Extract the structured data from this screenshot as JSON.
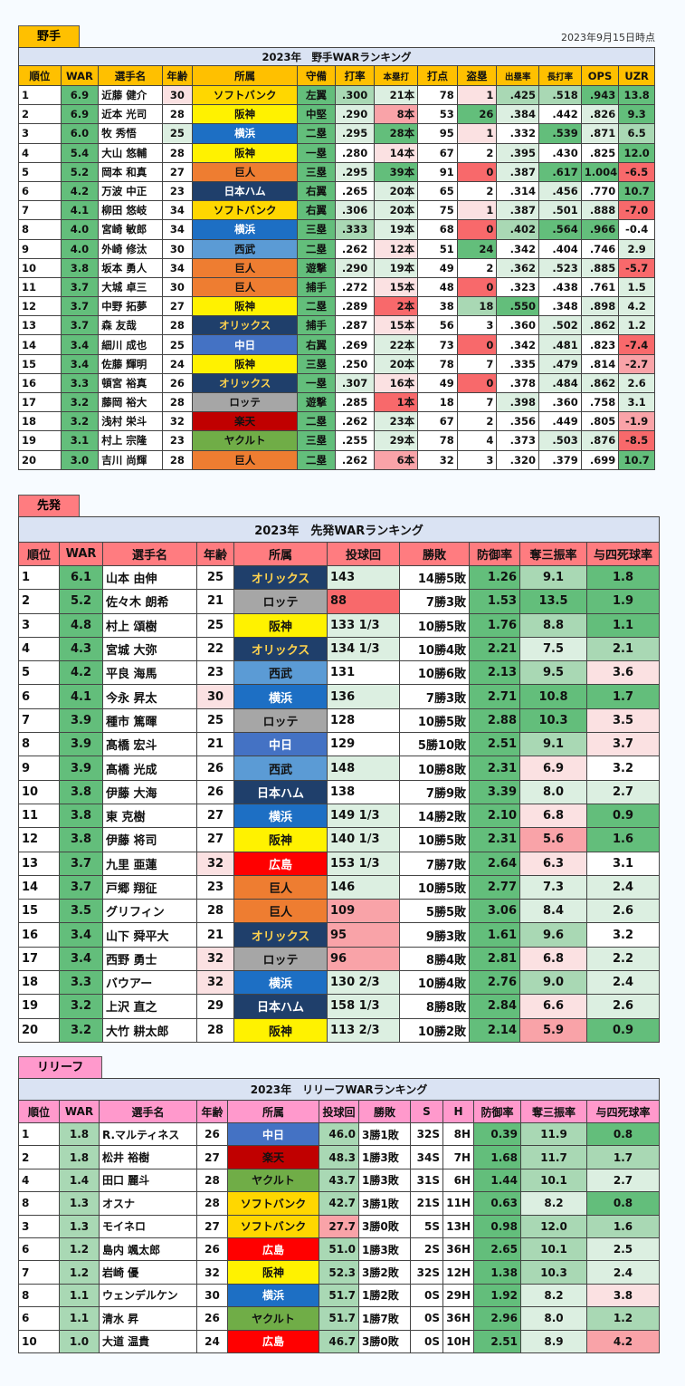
{
  "date": "2023年9月15日時点",
  "fielders": {
    "tab": "野手",
    "title": "2023年　野手WARランキング",
    "headers": [
      "順位",
      "WAR",
      "選手名",
      "年齢",
      "所属",
      "守備",
      "打率",
      "本塁打",
      "打点",
      "盗塁",
      "出塁率",
      "長打率",
      "OPS",
      "UZR"
    ],
    "rows": [
      [
        "1",
        "6.9",
        "近藤 健介",
        "30",
        "ソフトバンク",
        "左翼",
        ".300",
        "21本",
        "78",
        "1",
        ".425",
        ".518",
        ".943",
        "13.8"
      ],
      [
        "2",
        "6.9",
        "近本 光司",
        "28",
        "阪神",
        "中堅",
        ".290",
        "8本",
        "53",
        "26",
        ".384",
        ".442",
        ".826",
        "9.3"
      ],
      [
        "3",
        "6.0",
        "牧 秀悟",
        "25",
        "横浜",
        "二塁",
        ".295",
        "28本",
        "95",
        "1",
        ".332",
        ".539",
        ".871",
        "6.5"
      ],
      [
        "4",
        "5.4",
        "大山 悠輔",
        "28",
        "阪神",
        "一塁",
        ".280",
        "14本",
        "67",
        "2",
        ".395",
        ".430",
        ".825",
        "12.0"
      ],
      [
        "5",
        "5.2",
        "岡本 和真",
        "27",
        "巨人",
        "三塁",
        ".295",
        "39本",
        "91",
        "0",
        ".387",
        ".617",
        "1.004",
        "-6.5"
      ],
      [
        "6",
        "4.2",
        "万波 中正",
        "23",
        "日本ハム",
        "右翼",
        ".265",
        "20本",
        "65",
        "2",
        ".314",
        ".456",
        ".770",
        "10.7"
      ],
      [
        "7",
        "4.1",
        "柳田 悠岐",
        "34",
        "ソフトバンク",
        "右翼",
        ".306",
        "20本",
        "75",
        "1",
        ".387",
        ".501",
        ".888",
        "-7.0"
      ],
      [
        "8",
        "4.0",
        "宮崎 敏郎",
        "34",
        "横浜",
        "三塁",
        ".333",
        "19本",
        "68",
        "0",
        ".402",
        ".564",
        ".966",
        "-0.4"
      ],
      [
        "9",
        "4.0",
        "外崎 修汰",
        "30",
        "西武",
        "二塁",
        ".262",
        "12本",
        "51",
        "24",
        ".342",
        ".404",
        ".746",
        "2.9"
      ],
      [
        "10",
        "3.8",
        "坂本 勇人",
        "34",
        "巨人",
        "遊撃",
        ".290",
        "19本",
        "49",
        "2",
        ".362",
        ".523",
        ".885",
        "-5.7"
      ],
      [
        "11",
        "3.7",
        "大城 卓三",
        "30",
        "巨人",
        "捕手",
        ".272",
        "15本",
        "48",
        "0",
        ".323",
        ".438",
        ".761",
        "1.5"
      ],
      [
        "12",
        "3.7",
        "中野 拓夢",
        "27",
        "阪神",
        "二塁",
        ".289",
        "2本",
        "38",
        "18",
        ".550",
        ".348",
        ".898",
        "4.2"
      ],
      [
        "13",
        "3.7",
        "森 友哉",
        "28",
        "オリックス",
        "捕手",
        ".287",
        "15本",
        "56",
        "3",
        ".360",
        ".502",
        ".862",
        "1.2"
      ],
      [
        "14",
        "3.4",
        "細川 成也",
        "25",
        "中日",
        "右翼",
        ".269",
        "22本",
        "73",
        "0",
        ".342",
        ".481",
        ".823",
        "-7.4"
      ],
      [
        "15",
        "3.4",
        "佐藤 輝明",
        "24",
        "阪神",
        "三塁",
        ".250",
        "20本",
        "78",
        "7",
        ".335",
        ".479",
        ".814",
        "-2.7"
      ],
      [
        "16",
        "3.3",
        "頓宮 裕真",
        "26",
        "オリックス",
        "一塁",
        ".307",
        "16本",
        "49",
        "0",
        ".378",
        ".484",
        ".862",
        "2.6"
      ],
      [
        "17",
        "3.2",
        "藤岡 裕大",
        "28",
        "ロッテ",
        "遊撃",
        ".285",
        "1本",
        "18",
        "7",
        ".398",
        ".360",
        ".758",
        "3.1"
      ],
      [
        "18",
        "3.2",
        "浅村 栄斗",
        "32",
        "楽天",
        "二塁",
        ".262",
        "23本",
        "67",
        "2",
        ".356",
        ".449",
        ".805",
        "-1.9"
      ],
      [
        "19",
        "3.1",
        "村上 宗隆",
        "23",
        "ヤクルト",
        "三塁",
        ".255",
        "29本",
        "78",
        "4",
        ".373",
        ".503",
        ".876",
        "-8.5"
      ],
      [
        "20",
        "3.0",
        "吉川 尚輝",
        "28",
        "巨人",
        "二塁",
        ".262",
        "6本",
        "32",
        "3",
        ".320",
        ".379",
        ".699",
        "10.7"
      ]
    ],
    "shade": [
      [
        "",
        "gd",
        "",
        "pl",
        "",
        "gd",
        "gm",
        "gl",
        "n",
        "pl",
        "gm",
        "gm",
        "gd",
        "gd"
      ],
      [
        "",
        "gd",
        "",
        "n",
        "",
        "gd",
        "gl",
        "pm",
        "n",
        "gd",
        "gl",
        "n",
        "gl",
        "gd"
      ],
      [
        "",
        "gd",
        "",
        "gl",
        "",
        "gd",
        "gl",
        "gd",
        "n",
        "pl",
        "n",
        "gd",
        "gl",
        "gm"
      ],
      [
        "",
        "gd",
        "",
        "n",
        "",
        "gd",
        "n",
        "pl",
        "n",
        "n",
        "gl",
        "n",
        "n",
        "gd"
      ],
      [
        "",
        "gd",
        "",
        "n",
        "",
        "gd",
        "gl",
        "gd",
        "n",
        "pd",
        "gl",
        "gd",
        "gd",
        "pd"
      ],
      [
        "",
        "gd",
        "",
        "n",
        "",
        "gd",
        "n",
        "gl",
        "n",
        "n",
        "n",
        "gl",
        "n",
        "gd"
      ],
      [
        "",
        "gd",
        "",
        "n",
        "",
        "gd",
        "gl",
        "gl",
        "n",
        "pl",
        "gl",
        "gl",
        "gl",
        "pd"
      ],
      [
        "",
        "gd",
        "",
        "n",
        "",
        "gd",
        "gm",
        "gl",
        "n",
        "pd",
        "gm",
        "gd",
        "gd",
        "n"
      ],
      [
        "",
        "gd",
        "",
        "n",
        "",
        "gd",
        "n",
        "pl",
        "n",
        "gd",
        "n",
        "n",
        "n",
        "gl"
      ],
      [
        "",
        "gd",
        "",
        "n",
        "",
        "gd",
        "gl",
        "gl",
        "n",
        "n",
        "gl",
        "gl",
        "gl",
        "pd"
      ],
      [
        "",
        "gd",
        "",
        "n",
        "",
        "gd",
        "n",
        "pl",
        "n",
        "pd",
        "n",
        "n",
        "n",
        "gl"
      ],
      [
        "",
        "gd",
        "",
        "n",
        "",
        "gd",
        "n",
        "pd",
        "n",
        "gm",
        "gd",
        "n",
        "gl",
        "gl"
      ],
      [
        "",
        "gd",
        "",
        "n",
        "",
        "gd",
        "n",
        "pl",
        "n",
        "n",
        "n",
        "gl",
        "gl",
        "gl"
      ],
      [
        "",
        "gd",
        "",
        "n",
        "",
        "gd",
        "n",
        "gl",
        "n",
        "pd",
        "n",
        "gl",
        "n",
        "pd"
      ],
      [
        "",
        "gd",
        "",
        "n",
        "",
        "gd",
        "n",
        "gl",
        "n",
        "n",
        "n",
        "gl",
        "n",
        "pm"
      ],
      [
        "",
        "gd",
        "",
        "n",
        "",
        "gd",
        "gl",
        "pl",
        "n",
        "pd",
        "n",
        "gl",
        "gl",
        "gl"
      ],
      [
        "",
        "gd",
        "",
        "n",
        "",
        "gd",
        "n",
        "pd",
        "n",
        "n",
        "gl",
        "n",
        "n",
        "gl"
      ],
      [
        "",
        "gd",
        "",
        "n",
        "",
        "gd",
        "n",
        "gl",
        "n",
        "n",
        "n",
        "n",
        "n",
        "pm"
      ],
      [
        "",
        "gd",
        "",
        "n",
        "",
        "gd",
        "n",
        "gl",
        "n",
        "n",
        "n",
        "gl",
        "gl",
        "pd"
      ],
      [
        "",
        "gd",
        "",
        "n",
        "",
        "gd",
        "n",
        "pm",
        "n",
        "n",
        "n",
        "n",
        "n",
        "gd"
      ]
    ]
  },
  "starters": {
    "tab": "先発",
    "title": "2023年　先発WARランキング",
    "headers": [
      "順位",
      "WAR",
      "選手名",
      "年齢",
      "所属",
      "投球回",
      "勝敗",
      "防御率",
      "奪三振率",
      "与四死球率"
    ],
    "rows": [
      [
        "1",
        "6.1",
        "山本 由伸",
        "25",
        "オリックス",
        "143",
        "14勝5敗",
        "1.26",
        "9.1",
        "1.8"
      ],
      [
        "2",
        "5.2",
        "佐々木 朗希",
        "21",
        "ロッテ",
        "88",
        "7勝3敗",
        "1.53",
        "13.5",
        "1.9"
      ],
      [
        "3",
        "4.8",
        "村上 頌樹",
        "25",
        "阪神",
        "133 1/3",
        "10勝5敗",
        "1.76",
        "8.8",
        "1.1"
      ],
      [
        "4",
        "4.3",
        "宮城 大弥",
        "22",
        "オリックス",
        "134 1/3",
        "10勝4敗",
        "2.21",
        "7.5",
        "2.1"
      ],
      [
        "5",
        "4.2",
        "平良 海馬",
        "23",
        "西武",
        "131",
        "10勝6敗",
        "2.13",
        "9.5",
        "3.6"
      ],
      [
        "6",
        "4.1",
        "今永 昇太",
        "30",
        "横浜",
        "136",
        "7勝3敗",
        "2.71",
        "10.8",
        "1.7"
      ],
      [
        "7",
        "3.9",
        "種市 篤暉",
        "25",
        "ロッテ",
        "128",
        "10勝5敗",
        "2.88",
        "10.3",
        "3.5"
      ],
      [
        "8",
        "3.9",
        "髙橋 宏斗",
        "21",
        "中日",
        "129",
        "5勝10敗",
        "2.51",
        "9.1",
        "3.7"
      ],
      [
        "9",
        "3.9",
        "髙橋 光成",
        "26",
        "西武",
        "148",
        "10勝8敗",
        "2.31",
        "6.9",
        "3.2"
      ],
      [
        "10",
        "3.8",
        "伊藤 大海",
        "26",
        "日本ハム",
        "138",
        "7勝9敗",
        "3.39",
        "8.0",
        "2.7"
      ],
      [
        "11",
        "3.8",
        "東 克樹",
        "27",
        "横浜",
        "149 1/3",
        "14勝2敗",
        "2.10",
        "6.8",
        "0.9"
      ],
      [
        "12",
        "3.8",
        "伊藤 将司",
        "27",
        "阪神",
        "140 1/3",
        "10勝5敗",
        "2.31",
        "5.6",
        "1.6"
      ],
      [
        "13",
        "3.7",
        "九里 亜蓮",
        "32",
        "広島",
        "153 1/3",
        "7勝7敗",
        "2.64",
        "6.3",
        "3.1"
      ],
      [
        "14",
        "3.7",
        "戸郷 翔征",
        "23",
        "巨人",
        "146",
        "10勝5敗",
        "2.77",
        "7.3",
        "2.4"
      ],
      [
        "15",
        "3.5",
        "グリフィン",
        "28",
        "巨人",
        "109",
        "5勝5敗",
        "3.06",
        "8.4",
        "2.6"
      ],
      [
        "16",
        "3.4",
        "山下 舜平大",
        "21",
        "オリックス",
        "95",
        "9勝3敗",
        "1.61",
        "9.6",
        "3.2"
      ],
      [
        "17",
        "3.4",
        "西野 勇士",
        "32",
        "ロッテ",
        "96",
        "8勝4敗",
        "2.81",
        "6.8",
        "2.2"
      ],
      [
        "18",
        "3.3",
        "バウアー",
        "32",
        "横浜",
        "130 2/3",
        "10勝4敗",
        "2.76",
        "9.0",
        "2.4"
      ],
      [
        "19",
        "3.2",
        "上沢 直之",
        "29",
        "日本ハム",
        "158 1/3",
        "8勝8敗",
        "2.84",
        "6.6",
        "2.6"
      ],
      [
        "20",
        "3.2",
        "大竹 耕太郎",
        "28",
        "阪神",
        "113 2/3",
        "10勝2敗",
        "2.14",
        "5.9",
        "0.9"
      ]
    ],
    "shade": [
      [
        "",
        "gd",
        "",
        "n",
        "",
        "gl",
        "n",
        "gd",
        "gm",
        "gd"
      ],
      [
        "",
        "gd",
        "",
        "n",
        "",
        "pd",
        "n",
        "gd",
        "gd",
        "gd"
      ],
      [
        "",
        "gd",
        "",
        "n",
        "",
        "gl",
        "n",
        "gd",
        "gm",
        "gd"
      ],
      [
        "",
        "gd",
        "",
        "n",
        "",
        "gl",
        "n",
        "gd",
        "gl",
        "gm"
      ],
      [
        "",
        "gd",
        "",
        "n",
        "",
        "n",
        "n",
        "gd",
        "gm",
        "pl"
      ],
      [
        "",
        "gd",
        "",
        "pl",
        "",
        "gl",
        "n",
        "gd",
        "gd",
        "gd"
      ],
      [
        "",
        "gd",
        "",
        "n",
        "",
        "n",
        "n",
        "gd",
        "gd",
        "pl"
      ],
      [
        "",
        "gd",
        "",
        "n",
        "",
        "n",
        "n",
        "gd",
        "gm",
        "pl"
      ],
      [
        "",
        "gd",
        "",
        "n",
        "",
        "gl",
        "n",
        "gd",
        "pl",
        "n"
      ],
      [
        "",
        "gd",
        "",
        "n",
        "",
        "n",
        "n",
        "gd",
        "gl",
        "gl"
      ],
      [
        "",
        "gd",
        "",
        "n",
        "",
        "gl",
        "n",
        "gd",
        "pl",
        "gd"
      ],
      [
        "",
        "gd",
        "",
        "n",
        "",
        "gl",
        "n",
        "gd",
        "pm",
        "gd"
      ],
      [
        "",
        "gd",
        "",
        "pl",
        "",
        "gl",
        "n",
        "gd",
        "pl",
        "n"
      ],
      [
        "",
        "gd",
        "",
        "n",
        "",
        "gl",
        "n",
        "gd",
        "gl",
        "gl"
      ],
      [
        "",
        "gd",
        "",
        "n",
        "",
        "pm",
        "n",
        "gd",
        "gl",
        "gl"
      ],
      [
        "",
        "gd",
        "",
        "n",
        "",
        "pm",
        "n",
        "gd",
        "gm",
        "n"
      ],
      [
        "",
        "gd",
        "",
        "pl",
        "",
        "pm",
        "n",
        "gd",
        "pl",
        "gl"
      ],
      [
        "",
        "gd",
        "",
        "pl",
        "",
        "gl",
        "n",
        "gd",
        "gm",
        "gl"
      ],
      [
        "",
        "gd",
        "",
        "n",
        "",
        "gl",
        "n",
        "gd",
        "pl",
        "gl"
      ],
      [
        "",
        "gd",
        "",
        "n",
        "",
        "gl",
        "n",
        "gd",
        "pm",
        "gd"
      ]
    ]
  },
  "relievers": {
    "tab": "リリーフ",
    "title": "2023年　リリーフWARランキング",
    "headers": [
      "順位",
      "WAR",
      "選手名",
      "年齢",
      "所属",
      "投球回",
      "勝敗",
      "S",
      "H",
      "防御率",
      "奪三振率",
      "与四死球率"
    ],
    "rows": [
      [
        "1",
        "1.8",
        "R.マルティネス",
        "26",
        "中日",
        "46.0",
        "3勝1敗",
        "32S",
        "8H",
        "0.39",
        "11.9",
        "0.8"
      ],
      [
        "2",
        "1.8",
        "松井 裕樹",
        "27",
        "楽天",
        "48.3",
        "1勝3敗",
        "34S",
        "7H",
        "1.68",
        "11.7",
        "1.7"
      ],
      [
        "4",
        "1.4",
        "田口 麗斗",
        "28",
        "ヤクルト",
        "43.7",
        "1勝3敗",
        "31S",
        "6H",
        "1.44",
        "10.1",
        "2.7"
      ],
      [
        "8",
        "1.3",
        "オスナ",
        "28",
        "ソフトバンク",
        "42.7",
        "3勝1敗",
        "21S",
        "11H",
        "0.63",
        "8.2",
        "0.8"
      ],
      [
        "3",
        "1.3",
        "モイネロ",
        "27",
        "ソフトバンク",
        "27.7",
        "3勝0敗",
        "5S",
        "13H",
        "0.98",
        "12.0",
        "1.6"
      ],
      [
        "6",
        "1.2",
        "島内 颯太郎",
        "26",
        "広島",
        "51.0",
        "1勝3敗",
        "2S",
        "36H",
        "2.65",
        "10.1",
        "2.5"
      ],
      [
        "7",
        "1.2",
        "岩崎 優",
        "32",
        "阪神",
        "52.3",
        "3勝2敗",
        "32S",
        "12H",
        "1.38",
        "10.3",
        "2.4"
      ],
      [
        "8",
        "1.1",
        "ウェンデルケン",
        "30",
        "横浜",
        "51.7",
        "1勝2敗",
        "0S",
        "29H",
        "1.92",
        "8.2",
        "3.8"
      ],
      [
        "6",
        "1.1",
        "清水 昇",
        "26",
        "ヤクルト",
        "51.7",
        "1勝7敗",
        "0S",
        "36H",
        "2.96",
        "8.0",
        "1.2"
      ],
      [
        "10",
        "1.0",
        "大道 温貴",
        "24",
        "広島",
        "46.7",
        "3勝0敗",
        "0S",
        "10H",
        "2.51",
        "8.9",
        "4.2"
      ]
    ],
    "shade": [
      [
        "",
        "gm",
        "",
        "n",
        "",
        "gm",
        "n",
        "n",
        "n",
        "gd",
        "gm",
        "gd"
      ],
      [
        "",
        "gm",
        "",
        "n",
        "",
        "gm",
        "n",
        "n",
        "n",
        "gd",
        "gm",
        "gm"
      ],
      [
        "",
        "gm",
        "",
        "n",
        "",
        "gm",
        "n",
        "n",
        "n",
        "gd",
        "gm",
        "gl"
      ],
      [
        "",
        "gm",
        "",
        "n",
        "",
        "gm",
        "n",
        "n",
        "n",
        "gd",
        "gl",
        "gd"
      ],
      [
        "",
        "gm",
        "",
        "n",
        "",
        "pm",
        "n",
        "n",
        "n",
        "gd",
        "gm",
        "gm"
      ],
      [
        "",
        "gm",
        "",
        "n",
        "",
        "gm",
        "n",
        "n",
        "n",
        "gd",
        "gm",
        "gl"
      ],
      [
        "",
        "gm",
        "",
        "n",
        "",
        "gm",
        "n",
        "n",
        "n",
        "gd",
        "gm",
        "gl"
      ],
      [
        "",
        "gm",
        "",
        "n",
        "",
        "gm",
        "n",
        "n",
        "n",
        "gd",
        "gl",
        "pl"
      ],
      [
        "",
        "gm",
        "",
        "n",
        "",
        "gm",
        "n",
        "n",
        "n",
        "gd",
        "gl",
        "gm"
      ],
      [
        "",
        "gm",
        "",
        "n",
        "",
        "gm",
        "n",
        "n",
        "n",
        "gd",
        "gl",
        "pm"
      ]
    ]
  },
  "colors": {
    "fielder_tab": "#ffc000",
    "fielder_title": "#dae3f3",
    "fielder_header": "#ffc000",
    "starter_tab": "#ff7c80",
    "starter_title": "#dae3f3",
    "starter_header": "#ff7c80",
    "relief_tab": "#ff99cc",
    "relief_title": "#dae3f3",
    "relief_header": "#ff99cc"
  }
}
